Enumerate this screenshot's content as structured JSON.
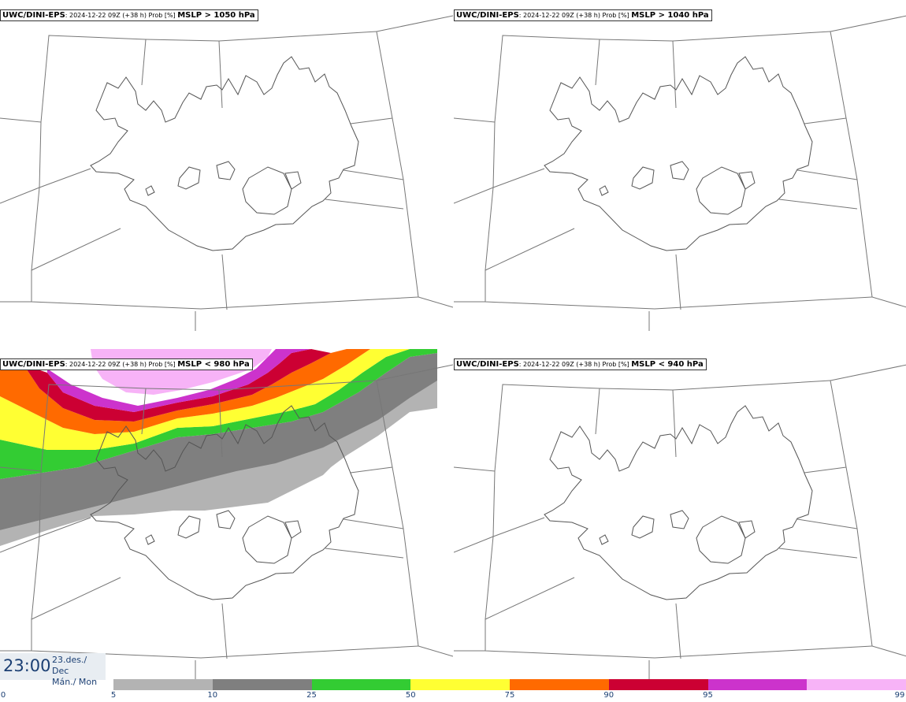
{
  "panels": [
    {
      "model": "UWC/DINI-EPS",
      "meta": ": 2024-12-22 09Z (+38 h) Prob [%] ",
      "field": "MSLP > 1050 hPa",
      "has_field": false
    },
    {
      "model": "UWC/DINI-EPS",
      "meta": ": 2024-12-22 09Z (+38 h) Prob [%] ",
      "field": "MSLP > 1040 hPa",
      "has_field": false
    },
    {
      "model": "UWC/DINI-EPS",
      "meta": ": 2024-12-22 09Z (+38 h) Prob [%] ",
      "field": "MSLP < 980 hPa",
      "has_field": true
    },
    {
      "model": "UWC/DINI-EPS",
      "meta": ": 2024-12-22 09Z (+38 h) Prob [%] ",
      "field": "MSLP < 940 hPa",
      "has_field": false
    }
  ],
  "time": {
    "hour": "23:00",
    "date": "23.des./ Dec",
    "day": "Mán./ Mon"
  },
  "legend": {
    "colors": [
      "#b3b3b3",
      "#7f7f7f",
      "#33cc33",
      "#ffff33",
      "#ff6a00",
      "#cc0033",
      "#cc33cc",
      "#f7b3f7"
    ],
    "labels": [
      "0",
      "5",
      "10",
      "25",
      "50",
      "75",
      "90",
      "95",
      "99"
    ]
  }
}
